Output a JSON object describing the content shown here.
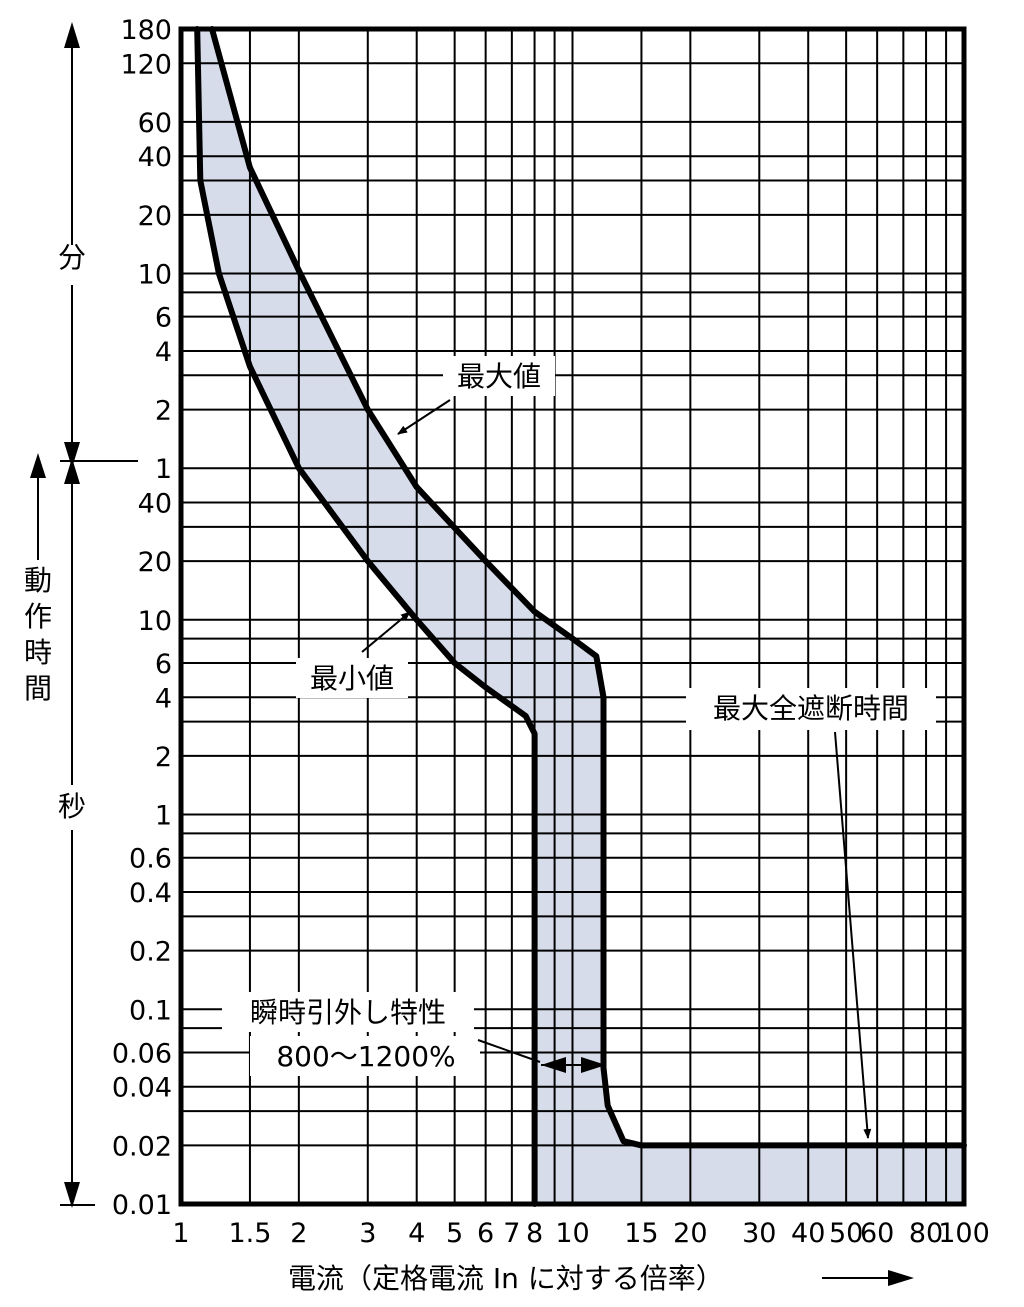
{
  "chart_data": {
    "type": "area",
    "x_axis": {
      "label": "電流（定格電流 In に対する倍率）",
      "scale": "log",
      "range": [
        1,
        100
      ],
      "tick_labels": [
        "1",
        "1.5",
        "2",
        "3",
        "4",
        "5",
        "6",
        "7",
        "8",
        "10",
        "15",
        "20",
        "30",
        "40",
        "50",
        "60",
        "80",
        "100"
      ],
      "tick_values": [
        1,
        1.5,
        2,
        3,
        4,
        5,
        6,
        7,
        8,
        10,
        15,
        20,
        30,
        40,
        50,
        60,
        80,
        100
      ]
    },
    "y_axis": {
      "label_min": "分",
      "label_op": "動作時間",
      "label_sec": "秒",
      "scale": "log",
      "range_seconds": [
        0.01,
        10800
      ],
      "tick_labels_min": [
        "180",
        "120",
        "60",
        "40",
        "20",
        "10",
        "6",
        "4",
        "2",
        "1"
      ],
      "tick_values_min": [
        180,
        120,
        60,
        40,
        20,
        10,
        6,
        4,
        2,
        1
      ],
      "tick_labels_sec": [
        "40",
        "20",
        "10",
        "6",
        "4",
        "2",
        "1",
        "0.6",
        "0.4",
        "0.2",
        "0.1",
        "0.06",
        "0.04",
        "0.02",
        "0.01"
      ],
      "tick_values_sec": [
        40,
        20,
        10,
        6,
        4,
        2,
        1,
        0.6,
        0.4,
        0.2,
        0.1,
        0.06,
        0.04,
        0.02,
        0.01
      ]
    },
    "series": [
      {
        "name": "最大値",
        "unit_y": "seconds",
        "points": [
          [
            1.2,
            10800
          ],
          [
            1.5,
            2100
          ],
          [
            2,
            620
          ],
          [
            3,
            120
          ],
          [
            4,
            48
          ],
          [
            6,
            20
          ],
          [
            8,
            11
          ],
          [
            10,
            8
          ],
          [
            11.5,
            6.5
          ],
          [
            12,
            4
          ],
          [
            12,
            0.05
          ],
          [
            12.3,
            0.032
          ],
          [
            13.5,
            0.021
          ],
          [
            15,
            0.02
          ],
          [
            100,
            0.02
          ]
        ]
      },
      {
        "name": "最小値",
        "unit_y": "seconds",
        "points": [
          [
            1.1,
            10800
          ],
          [
            1.12,
            1800
          ],
          [
            1.25,
            600
          ],
          [
            1.5,
            200
          ],
          [
            2,
            60
          ],
          [
            3,
            20
          ],
          [
            4,
            10
          ],
          [
            5,
            6
          ],
          [
            6,
            4.5
          ],
          [
            7.6,
            3.2
          ],
          [
            8,
            2.6
          ],
          [
            8,
            0.01
          ]
        ]
      }
    ],
    "grid": true,
    "annotations": [
      {
        "text": "最大値"
      },
      {
        "text": "最小値"
      },
      {
        "text": "最大全遮断時間"
      },
      {
        "text_line1": "瞬時引外し特性",
        "text_line2": "800〜1200%"
      }
    ]
  }
}
